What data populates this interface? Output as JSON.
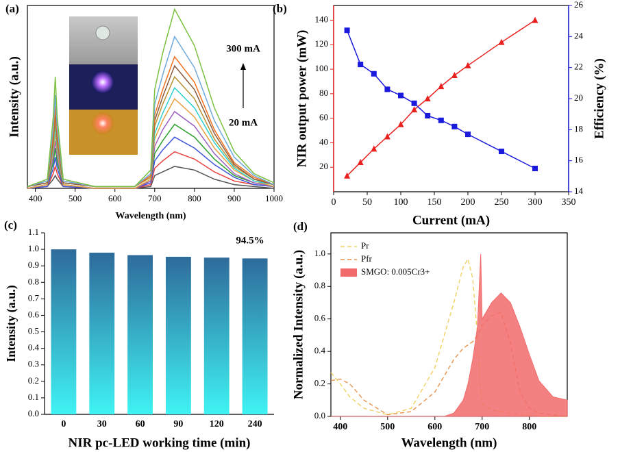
{
  "chart_data": [
    {
      "type": "line",
      "panel_label": "(a)",
      "xlabel": "Wavelength (nm)",
      "ylabel": "Intensity (a.u.)",
      "xlim": [
        380,
        1000
      ],
      "xticks": [
        400,
        500,
        600,
        700,
        800,
        900,
        1000
      ],
      "ylim": [
        0,
        1
      ],
      "annotations": [
        {
          "text": "300 mA"
        },
        {
          "text": "20 mA"
        }
      ],
      "x": [
        380,
        430,
        445,
        450,
        455,
        470,
        550,
        650,
        690,
        700,
        720,
        750,
        800,
        850,
        900,
        950,
        1000
      ],
      "series": [
        {
          "color": "#555555",
          "values": [
            0.0,
            0.01,
            0.05,
            0.07,
            0.05,
            0.01,
            0.0,
            0.0,
            0.01,
            0.07,
            0.09,
            0.12,
            0.1,
            0.05,
            0.02,
            0.01,
            0.0
          ]
        },
        {
          "color": "#e8403a",
          "values": [
            0.0,
            0.01,
            0.08,
            0.12,
            0.08,
            0.01,
            0.0,
            0.0,
            0.02,
            0.11,
            0.15,
            0.2,
            0.16,
            0.09,
            0.04,
            0.02,
            0.01
          ]
        },
        {
          "color": "#3c55d8",
          "values": [
            0.0,
            0.01,
            0.11,
            0.17,
            0.11,
            0.01,
            0.0,
            0.0,
            0.03,
            0.15,
            0.21,
            0.28,
            0.22,
            0.13,
            0.06,
            0.02,
            0.01
          ]
        },
        {
          "color": "#2ca02c",
          "values": [
            0.0,
            0.02,
            0.14,
            0.22,
            0.14,
            0.02,
            0.0,
            0.0,
            0.04,
            0.19,
            0.26,
            0.35,
            0.28,
            0.16,
            0.07,
            0.03,
            0.01
          ]
        },
        {
          "color": "#9b5fc0",
          "values": [
            0.0,
            0.02,
            0.17,
            0.26,
            0.17,
            0.02,
            0.0,
            0.0,
            0.04,
            0.23,
            0.32,
            0.42,
            0.34,
            0.19,
            0.08,
            0.03,
            0.01
          ]
        },
        {
          "color": "#e8a040",
          "values": [
            0.0,
            0.02,
            0.2,
            0.3,
            0.2,
            0.02,
            0.0,
            0.0,
            0.05,
            0.27,
            0.37,
            0.49,
            0.39,
            0.22,
            0.1,
            0.04,
            0.01
          ]
        },
        {
          "color": "#2bd0d0",
          "values": [
            0.01,
            0.03,
            0.22,
            0.34,
            0.22,
            0.03,
            0.01,
            0.01,
            0.06,
            0.3,
            0.41,
            0.55,
            0.44,
            0.25,
            0.11,
            0.04,
            0.02
          ]
        },
        {
          "color": "#b89030",
          "values": [
            0.01,
            0.03,
            0.24,
            0.38,
            0.24,
            0.03,
            0.01,
            0.01,
            0.06,
            0.34,
            0.46,
            0.61,
            0.49,
            0.27,
            0.12,
            0.05,
            0.02
          ]
        },
        {
          "color": "#8b5a3c",
          "values": [
            0.01,
            0.03,
            0.27,
            0.42,
            0.27,
            0.03,
            0.01,
            0.01,
            0.07,
            0.37,
            0.5,
            0.67,
            0.54,
            0.3,
            0.13,
            0.05,
            0.02
          ]
        },
        {
          "color": "#f07020",
          "values": [
            0.01,
            0.04,
            0.29,
            0.45,
            0.29,
            0.04,
            0.01,
            0.01,
            0.07,
            0.4,
            0.54,
            0.72,
            0.58,
            0.32,
            0.14,
            0.06,
            0.02
          ]
        },
        {
          "color": "#6ea8dc",
          "values": [
            0.01,
            0.04,
            0.33,
            0.51,
            0.33,
            0.04,
            0.01,
            0.01,
            0.08,
            0.46,
            0.62,
            0.83,
            0.66,
            0.37,
            0.17,
            0.07,
            0.02
          ]
        },
        {
          "color": "#7ac142",
          "values": [
            0.01,
            0.05,
            0.39,
            0.61,
            0.39,
            0.05,
            0.01,
            0.01,
            0.1,
            0.54,
            0.74,
            0.98,
            0.78,
            0.44,
            0.2,
            0.08,
            0.03
          ]
        }
      ]
    },
    {
      "type": "line",
      "panel_label": "(b)",
      "xlabel": "Current (mA)",
      "ylabel": "NIR output power (mW)",
      "y2label": "Efficiency (%)",
      "xlim": [
        0,
        350
      ],
      "xticks": [
        0,
        50,
        100,
        150,
        200,
        250,
        300,
        350
      ],
      "ylim": [
        0,
        152
      ],
      "yticks": [
        20,
        40,
        60,
        80,
        100,
        120,
        140
      ],
      "y2lim": [
        14,
        26
      ],
      "y2ticks": [
        14,
        16,
        18,
        20,
        22,
        24,
        26
      ],
      "x": [
        20,
        40,
        60,
        80,
        100,
        120,
        140,
        160,
        180,
        200,
        250,
        300
      ],
      "series": [
        {
          "color": "#e8201e",
          "marker": "triangle",
          "values": [
            13,
            24,
            35,
            45,
            55,
            67,
            76,
            86,
            95,
            103,
            122,
            140
          ]
        },
        {
          "color": "#1a1adc",
          "marker": "square",
          "axis": "y2",
          "values": [
            24.4,
            22.2,
            21.6,
            20.6,
            20.2,
            19.7,
            18.9,
            18.6,
            18.2,
            17.7,
            16.6,
            15.5
          ]
        }
      ]
    },
    {
      "type": "bar",
      "panel_label": "(c)",
      "xlabel": "NIR pc-LED working time (min)",
      "ylabel": "Intensity (a.u.)",
      "categories": [
        "0",
        "30",
        "60",
        "90",
        "120",
        "240"
      ],
      "values": [
        1.0,
        0.98,
        0.965,
        0.955,
        0.95,
        0.945
      ],
      "gradient": [
        "#2e6b9b",
        "#3ff3f3"
      ],
      "ylim": [
        0,
        1.1
      ],
      "yticks": [
        {
          "value": 0,
          "label": "0.0"
        },
        0.1,
        0.2,
        0.3,
        0.4,
        0.5,
        0.6,
        0.7,
        0.8,
        0.9,
        {
          "value": 1,
          "label": "1.0"
        },
        1.1
      ],
      "annotations": [
        {
          "text": "94.5%",
          "color": "#e8201e"
        }
      ]
    },
    {
      "type": "line",
      "panel_label": "(d)",
      "xlabel": "Wavelength (nm)",
      "ylabel": "Normalized Intensity (a.u.)",
      "xlim": [
        380,
        880
      ],
      "xticks": [
        400,
        500,
        600,
        700,
        800
      ],
      "ylim": [
        0,
        1.13
      ],
      "yticks": [
        {
          "value": 0,
          "label": "0.0"
        },
        0.2,
        0.4,
        0.6,
        0.8,
        {
          "value": 1,
          "label": "1.0"
        }
      ],
      "legend": "upper left",
      "x": [
        380,
        400,
        420,
        450,
        500,
        550,
        600,
        620,
        640,
        660,
        670,
        680,
        690,
        697,
        700,
        720,
        740,
        760,
        780,
        800,
        820,
        850,
        880
      ],
      "series": [
        {
          "name": "Pr",
          "color": "#f0d060",
          "dash": true,
          "values": [
            0.27,
            0.2,
            0.12,
            0.05,
            0.01,
            0.05,
            0.3,
            0.5,
            0.7,
            0.92,
            0.97,
            0.85,
            0.5,
            0.15,
            0.08,
            0.04,
            0.03,
            0.02,
            0.01,
            0.01,
            0.0,
            0.0,
            0.0
          ]
        },
        {
          "name": "Pfr",
          "color": "#e8924a",
          "dash": true,
          "values": [
            0.22,
            0.23,
            0.2,
            0.1,
            0.01,
            0.03,
            0.15,
            0.25,
            0.35,
            0.42,
            0.44,
            0.46,
            0.5,
            0.54,
            0.56,
            0.62,
            0.64,
            0.45,
            0.15,
            0.05,
            0.02,
            0.01,
            0.0
          ]
        },
        {
          "name": "SMGO: 0.005Cr3+",
          "color": "#f26b6b",
          "fill": true,
          "values": [
            0,
            0,
            0,
            0,
            0,
            0,
            0,
            0,
            0.02,
            0.1,
            0.2,
            0.35,
            0.55,
            1.0,
            0.6,
            0.7,
            0.76,
            0.7,
            0.55,
            0.38,
            0.22,
            0.12,
            0.1
          ]
        }
      ]
    }
  ]
}
